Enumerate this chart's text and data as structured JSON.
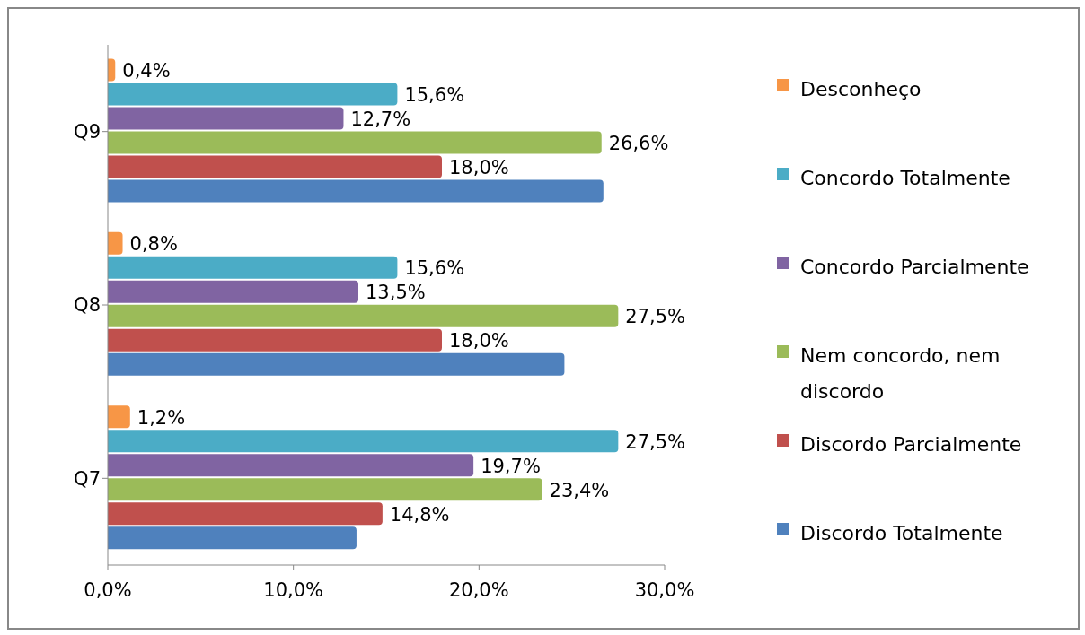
{
  "chart_data": {
    "type": "bar",
    "orientation": "horizontal",
    "categories": [
      "Q9",
      "Q8",
      "Q7"
    ],
    "series": [
      {
        "name": "Desconheço",
        "color": "#f79646",
        "values": [
          0.4,
          0.8,
          1.2
        ],
        "value_labels": [
          "0,4%",
          "0,8%",
          "1,2%"
        ]
      },
      {
        "name": "Concordo Totalmente",
        "color": "#4bacc6",
        "values": [
          15.6,
          15.6,
          27.5
        ],
        "value_labels": [
          "15,6%",
          "15,6%",
          "27,5%"
        ]
      },
      {
        "name": "Concordo Parcialmente",
        "color": "#8064a2",
        "values": [
          12.7,
          13.5,
          19.7
        ],
        "value_labels": [
          "12,7%",
          "13,5%",
          "19,7%"
        ]
      },
      {
        "name": "Nem concordo, nem discordo",
        "color": "#9bbb59",
        "values": [
          26.6,
          27.5,
          23.4
        ],
        "value_labels": [
          "26,6%",
          "27,5%",
          "23,4%"
        ]
      },
      {
        "name": "Discordo Parcialmente",
        "color": "#c0504d",
        "values": [
          18.0,
          18.0,
          14.8
        ],
        "value_labels": [
          "18,0%",
          "18,0%",
          "14,8%"
        ]
      },
      {
        "name": "Discordo Totalmente",
        "color": "#4f81bd",
        "values": [
          26.7,
          24.6,
          13.4
        ],
        "value_labels": [
          null,
          null,
          null
        ]
      }
    ],
    "xlim": [
      0,
      30
    ],
    "xticks": [
      {
        "value": 0,
        "label": "0,0%"
      },
      {
        "value": 10,
        "label": "10,0%"
      },
      {
        "value": 20,
        "label": "20,0%"
      },
      {
        "value": 30,
        "label": "30,0%"
      }
    ],
    "grid": false,
    "legend": "right"
  }
}
